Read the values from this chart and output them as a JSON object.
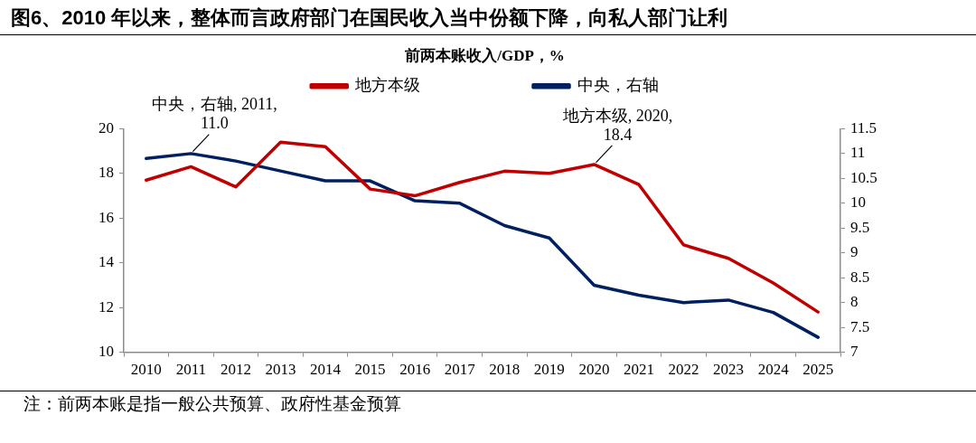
{
  "chart_data": {
    "type": "line",
    "title": "图6、2010 年以来，整体而言政府部门在国民收入当中份额下降，向私人部门让利",
    "subtitle": "前两本账收入/GDP，%",
    "categories": [
      "2010",
      "2011",
      "2012",
      "2013",
      "2014",
      "2015",
      "2016",
      "2017",
      "2018",
      "2019",
      "2020",
      "2021",
      "2022",
      "2023",
      "2024",
      "2025"
    ],
    "series": [
      {
        "name": "地方本级",
        "color": "#c00000",
        "values": [
          17.7,
          18.3,
          17.4,
          19.4,
          19.2,
          17.3,
          17.0,
          17.6,
          18.1,
          18.0,
          18.4,
          17.5,
          14.8,
          14.2,
          13.1,
          11.8
        ]
      },
      {
        "name": "中央，右轴",
        "color": "#002060",
        "axis": "y2",
        "values": [
          10.9,
          11.0,
          10.85,
          10.65,
          10.45,
          10.45,
          10.05,
          10.0,
          9.55,
          9.3,
          8.35,
          8.15,
          8.0,
          8.05,
          7.8,
          7.3
        ]
      }
    ],
    "ylim": [
      10,
      20
    ],
    "yticks": [
      10,
      12,
      14,
      16,
      18,
      20
    ],
    "y2lim": [
      7,
      11.5
    ],
    "y2ticks": [
      7,
      7.5,
      8,
      8.5,
      9,
      9.5,
      10,
      10.5,
      11,
      11.5
    ],
    "grid": false,
    "legend": "top",
    "marker": "none",
    "line_style": "solid",
    "annotations": [
      {
        "text": "中央，右轴, 2011,\n11.0",
        "x": "2011",
        "y": 18.9
      },
      {
        "text": "地方本级, 2020,\n18.4",
        "x": "2020",
        "y": 18.4
      },
      "注：前两本账是指一般公共预算、政府性基金预算"
    ]
  }
}
